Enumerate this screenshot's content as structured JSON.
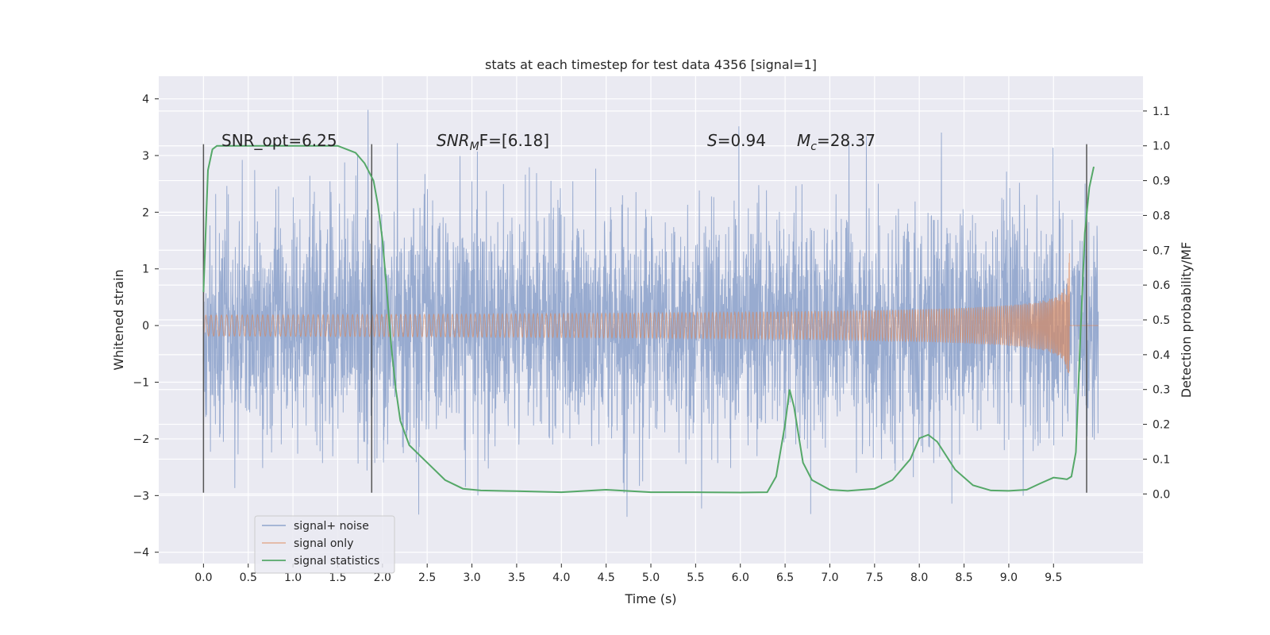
{
  "chart_data": {
    "type": "line",
    "title": "stats at each timestep for test data 4356 [signal=1]",
    "xlabel": "Time (s)",
    "ylabel": "Whitened strain",
    "ylabel_right": "Detection probability/MF",
    "xlim": [
      -0.5,
      10.5
    ],
    "ylim": [
      -4.2,
      4.4
    ],
    "ylim_right": [
      -0.2,
      1.2
    ],
    "x_ticks": [
      "0.0",
      "0.5",
      "1.0",
      "1.5",
      "2.0",
      "2.5",
      "3.0",
      "3.5",
      "4.0",
      "4.5",
      "5.0",
      "5.5",
      "6.0",
      "6.5",
      "7.0",
      "7.5",
      "8.0",
      "8.5",
      "9.0",
      "9.5"
    ],
    "y_ticks": [
      "4",
      "3",
      "2",
      "1",
      "0",
      "−1",
      "−2",
      "−3",
      "−4"
    ],
    "y_ticks_right": [
      "1.1",
      "1.0",
      "0.9",
      "0.8",
      "0.7",
      "0.6",
      "0.5",
      "0.4",
      "0.3",
      "0.2",
      "0.1",
      "0.0"
    ],
    "grid": true,
    "legend_position": "lower-left",
    "annotations": {
      "snr_opt": "SNR_opt=6.25",
      "snr_mf_main": "SNR",
      "snr_mf_sub": "M",
      "snr_mf_rest": "F=[6.18]",
      "s_main": "S",
      "s_rest": "=0.94",
      "mc_main": "M",
      "mc_sub": "c",
      "mc_rest": "=28.37"
    },
    "window_markers": [
      0.0,
      1.88,
      9.87
    ],
    "noise_range": [
      -3.5,
      4.0
    ],
    "series": [
      {
        "name": "signal+ noise",
        "color": "#8fa4cc",
        "x_range": [
          0.0,
          10.0
        ]
      },
      {
        "name": "signal only",
        "color": "#dd8452",
        "chirp_end_time": 9.68,
        "peak_amplitude": 1.3
      },
      {
        "name": "signal statistics",
        "color": "#55a868",
        "axis": "right",
        "x": [
          0.0,
          0.05,
          0.1,
          0.15,
          0.2,
          0.3,
          0.5,
          1.0,
          1.5,
          1.6,
          1.7,
          1.8,
          1.9,
          1.95,
          2.0,
          2.05,
          2.1,
          2.15,
          2.2,
          2.3,
          2.5,
          2.7,
          2.9,
          3.1,
          3.5,
          4.0,
          4.5,
          5.0,
          5.5,
          6.0,
          6.3,
          6.4,
          6.5,
          6.55,
          6.6,
          6.65,
          6.7,
          6.8,
          7.0,
          7.2,
          7.5,
          7.7,
          7.9,
          8.0,
          8.1,
          8.2,
          8.4,
          8.6,
          8.8,
          9.0,
          9.2,
          9.35,
          9.5,
          9.6,
          9.65,
          9.7,
          9.75,
          9.8,
          9.85,
          9.9,
          9.95
        ],
        "values": [
          0.58,
          0.93,
          0.99,
          1.0,
          1.0,
          1.0,
          1.0,
          1.0,
          1.0,
          0.99,
          0.98,
          0.95,
          0.9,
          0.83,
          0.73,
          0.58,
          0.42,
          0.3,
          0.21,
          0.14,
          0.09,
          0.04,
          0.015,
          0.01,
          0.008,
          0.005,
          0.012,
          0.005,
          0.005,
          0.004,
          0.005,
          0.05,
          0.2,
          0.3,
          0.25,
          0.17,
          0.09,
          0.04,
          0.012,
          0.009,
          0.015,
          0.04,
          0.1,
          0.16,
          0.17,
          0.15,
          0.07,
          0.025,
          0.01,
          0.009,
          0.012,
          0.03,
          0.047,
          0.044,
          0.042,
          0.05,
          0.12,
          0.45,
          0.75,
          0.88,
          0.94
        ]
      }
    ]
  }
}
